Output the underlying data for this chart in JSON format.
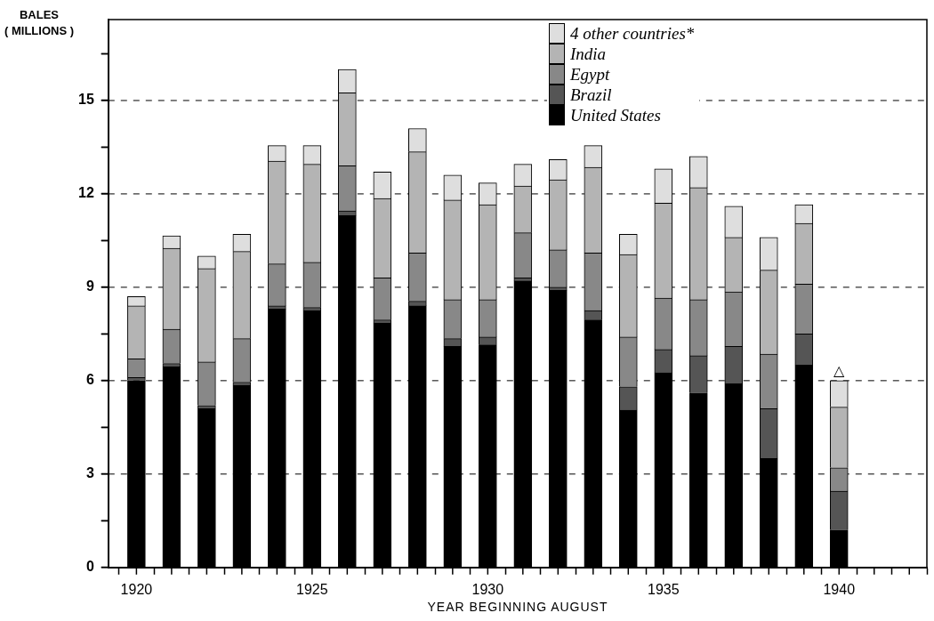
{
  "chart_data": {
    "type": "bar",
    "stacked": true,
    "xlabel": "YEAR BEGINNING AUGUST",
    "ylabel": "BALES\n( MILLIONS )",
    "x": [
      1920,
      1921,
      1922,
      1923,
      1924,
      1925,
      1926,
      1927,
      1928,
      1929,
      1930,
      1931,
      1932,
      1933,
      1934,
      1935,
      1936,
      1937,
      1938,
      1939,
      1940
    ],
    "xlim": [
      1919.2,
      1942.5
    ],
    "xticks": [
      1920,
      {
        "value": 1921,
        "label": null
      },
      {
        "value": 1922,
        "label": null
      },
      {
        "value": 1923,
        "label": null
      },
      {
        "value": 1924,
        "label": null
      },
      1925,
      {
        "value": 1926,
        "label": null
      },
      {
        "value": 1927,
        "label": null
      },
      {
        "value": 1928,
        "label": null
      },
      {
        "value": 1929,
        "label": null
      },
      1930,
      {
        "value": 1931,
        "label": null
      },
      {
        "value": 1932,
        "label": null
      },
      {
        "value": 1933,
        "label": null
      },
      {
        "value": 1934,
        "label": null
      },
      1935,
      {
        "value": 1936,
        "label": null
      },
      {
        "value": 1937,
        "label": null
      },
      {
        "value": 1938,
        "label": null
      },
      {
        "value": 1939,
        "label": null
      },
      1940,
      {
        "value": 1941,
        "label": null
      },
      {
        "value": 1942,
        "label": null
      }
    ],
    "ylim": [
      0,
      17.6
    ],
    "yticks": [
      0,
      {
        "value": 1.5,
        "label": null
      },
      3,
      {
        "value": 4.5,
        "label": null
      },
      6,
      {
        "value": 7.5,
        "label": null
      },
      9,
      {
        "value": 10.5,
        "label": null
      },
      12,
      {
        "value": 13.5,
        "label": null
      },
      15,
      {
        "value": 16.5,
        "label": null
      }
    ],
    "grid": "y",
    "line_style": "dashed",
    "legend": "top",
    "series": [
      {
        "name": "United States",
        "color": "#000000",
        "values": [
          6.0,
          6.45,
          5.1,
          5.85,
          8.3,
          8.25,
          11.3,
          7.85,
          8.4,
          7.1,
          7.15,
          9.2,
          8.9,
          7.95,
          5.05,
          6.25,
          5.6,
          5.9,
          3.5,
          6.5,
          1.2
        ]
      },
      {
        "name": "Brazil",
        "color": "#555555",
        "values": [
          0.1,
          0.1,
          0.1,
          0.1,
          0.1,
          0.1,
          0.15,
          0.1,
          0.15,
          0.25,
          0.25,
          0.1,
          0.1,
          0.3,
          0.75,
          0.75,
          1.2,
          1.2,
          1.6,
          1.0,
          1.25
        ]
      },
      {
        "name": "Egypt",
        "color": "#888888",
        "values": [
          0.6,
          1.1,
          1.4,
          1.4,
          1.35,
          1.45,
          1.45,
          1.35,
          1.55,
          1.25,
          1.2,
          1.45,
          1.2,
          1.85,
          1.6,
          1.65,
          1.8,
          1.75,
          1.75,
          1.6,
          0.75
        ]
      },
      {
        "name": "India",
        "color": "#b4b4b4",
        "values": [
          1.7,
          2.6,
          3.0,
          2.8,
          3.3,
          3.15,
          2.35,
          2.55,
          3.25,
          3.2,
          3.05,
          1.5,
          2.25,
          2.75,
          2.65,
          3.05,
          3.6,
          1.75,
          2.7,
          1.95,
          1.95
        ]
      },
      {
        "name": "4 other countries*",
        "color": "#dedede",
        "values": [
          0.3,
          0.4,
          0.4,
          0.55,
          0.5,
          0.6,
          0.75,
          0.85,
          0.75,
          0.8,
          0.7,
          0.7,
          0.65,
          0.7,
          0.65,
          1.1,
          1.0,
          1.0,
          1.05,
          0.6,
          0.85
        ]
      }
    ],
    "annotations": [
      {
        "text": "△",
        "x": 1940,
        "y": 6.0
      }
    ]
  }
}
